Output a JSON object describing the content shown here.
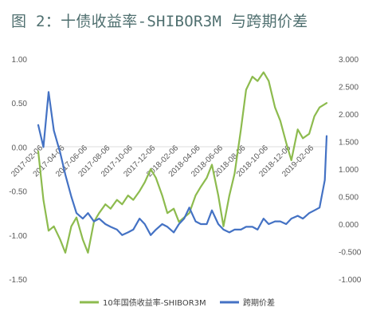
{
  "chart_data": {
    "type": "line",
    "title": "图 2：十债收益率-SHIBOR3M 与跨期价差",
    "y_left": {
      "ticks": [
        "1.00",
        "0.50",
        "0.00",
        "-0.50",
        "-1.00",
        "-1.50"
      ],
      "range": [
        -1.5,
        1.0
      ]
    },
    "y_right": {
      "ticks": [
        "3.000",
        "2.500",
        "2.000",
        "1.500",
        "1.000",
        "0.500",
        "0.000",
        "-0.500",
        "-1.000"
      ],
      "range": [
        -1.0,
        3.0
      ]
    },
    "x_ticks": [
      "2017-02-06",
      "2017-04-06",
      "2017-06-06",
      "2017-08-06",
      "2017-10-06",
      "2017-12-06",
      "2018-02-06",
      "2018-04-06",
      "2018-06-06",
      "2018-08-06",
      "2018-10-06",
      "2018-12-06",
      "2019-02-06"
    ],
    "x_range": [
      "2017-02-06",
      "2019-03-25"
    ],
    "grid": false,
    "legend_position": "bottom",
    "series": [
      {
        "name": "10年国债收益率-SHIBOR3M",
        "axis": "left",
        "color": "#8dbb4e",
        "x": [
          "2017-02-06",
          "2017-02-20",
          "2017-03-06",
          "2017-03-20",
          "2017-04-06",
          "2017-04-20",
          "2017-05-06",
          "2017-05-20",
          "2017-06-06",
          "2017-06-20",
          "2017-07-06",
          "2017-07-20",
          "2017-08-06",
          "2017-08-20",
          "2017-09-06",
          "2017-09-20",
          "2017-10-06",
          "2017-10-20",
          "2017-11-06",
          "2017-11-20",
          "2017-12-06",
          "2017-12-20",
          "2018-01-06",
          "2018-01-20",
          "2018-02-06",
          "2018-02-20",
          "2018-03-06",
          "2018-03-20",
          "2018-04-06",
          "2018-04-20",
          "2018-05-06",
          "2018-05-20",
          "2018-06-06",
          "2018-06-20",
          "2018-07-06",
          "2018-07-20",
          "2018-08-06",
          "2018-08-20",
          "2018-09-06",
          "2018-09-20",
          "2018-10-06",
          "2018-10-20",
          "2018-11-06",
          "2018-11-20",
          "2018-12-06",
          "2018-12-20",
          "2019-01-06",
          "2019-01-20",
          "2019-02-06",
          "2019-02-20",
          "2019-03-06",
          "2019-03-25"
        ],
        "y": [
          -0.05,
          -0.6,
          -0.95,
          -0.9,
          -1.05,
          -1.2,
          -0.9,
          -0.8,
          -1.05,
          -1.2,
          -0.85,
          -0.75,
          -0.65,
          -0.7,
          -0.6,
          -0.65,
          -0.55,
          -0.6,
          -0.5,
          -0.4,
          -0.25,
          -0.35,
          -0.55,
          -0.75,
          -0.7,
          -0.85,
          -0.8,
          -0.75,
          -0.55,
          -0.45,
          -0.35,
          -0.2,
          -0.55,
          -0.9,
          -0.55,
          -0.3,
          0.2,
          0.65,
          0.8,
          0.75,
          0.85,
          0.75,
          0.45,
          0.3,
          0.05,
          -0.15,
          0.2,
          0.1,
          0.15,
          0.35,
          0.45,
          0.5
        ]
      },
      {
        "name": "跨期价差",
        "axis": "right",
        "color": "#4472c4",
        "x": [
          "2017-02-06",
          "2017-02-20",
          "2017-03-06",
          "2017-03-20",
          "2017-04-06",
          "2017-04-20",
          "2017-05-06",
          "2017-05-20",
          "2017-06-06",
          "2017-06-20",
          "2017-07-06",
          "2017-07-20",
          "2017-08-06",
          "2017-08-20",
          "2017-09-06",
          "2017-09-20",
          "2017-10-06",
          "2017-10-20",
          "2017-11-06",
          "2017-11-20",
          "2017-12-06",
          "2017-12-20",
          "2018-01-06",
          "2018-01-20",
          "2018-02-06",
          "2018-02-20",
          "2018-03-06",
          "2018-03-20",
          "2018-04-06",
          "2018-04-20",
          "2018-05-06",
          "2018-05-20",
          "2018-06-06",
          "2018-06-20",
          "2018-07-06",
          "2018-07-20",
          "2018-08-06",
          "2018-08-20",
          "2018-09-06",
          "2018-09-20",
          "2018-10-06",
          "2018-10-20",
          "2018-11-06",
          "2018-11-20",
          "2018-12-06",
          "2018-12-20",
          "2019-01-06",
          "2019-01-20",
          "2019-02-06",
          "2019-02-20",
          "2019-03-06",
          "2019-03-20",
          "2019-03-25"
        ],
        "y": [
          1.8,
          1.4,
          2.4,
          1.7,
          1.3,
          0.9,
          0.5,
          0.2,
          0.1,
          0.2,
          0.05,
          0.1,
          0.0,
          -0.05,
          -0.1,
          -0.2,
          -0.15,
          -0.1,
          0.1,
          0.0,
          -0.2,
          -0.1,
          0.0,
          -0.05,
          -0.15,
          0.0,
          0.1,
          0.3,
          0.05,
          0.0,
          0.0,
          0.25,
          0.0,
          -0.1,
          -0.15,
          -0.1,
          -0.1,
          -0.05,
          -0.05,
          -0.1,
          0.1,
          0.0,
          0.05,
          0.05,
          0.0,
          0.1,
          0.15,
          0.1,
          0.2,
          0.25,
          0.3,
          0.8,
          1.6
        ]
      }
    ]
  }
}
